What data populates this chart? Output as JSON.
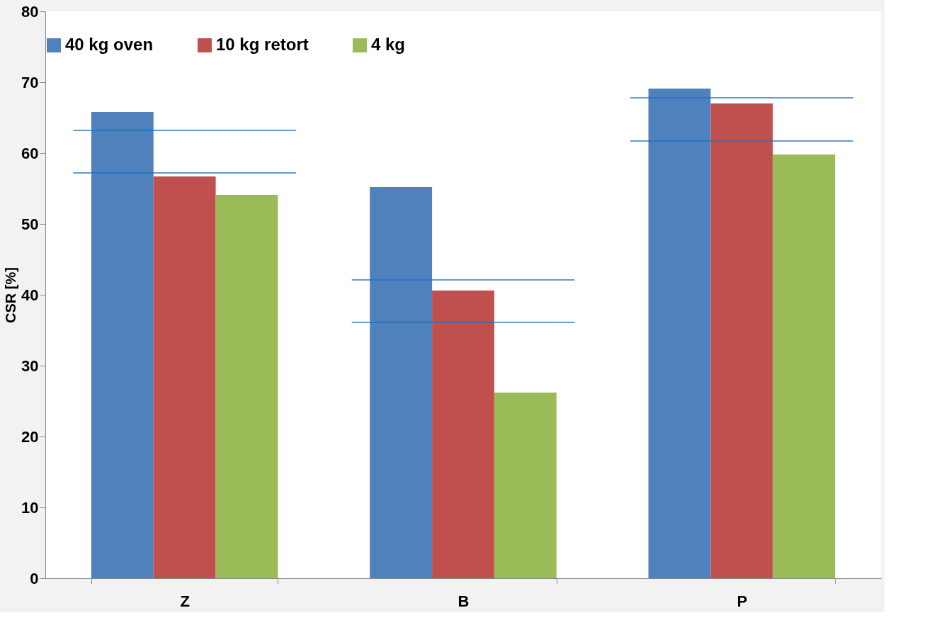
{
  "chart_data": {
    "type": "bar",
    "ylabel": "CSR [%]",
    "categories": [
      "Z",
      "B",
      "P"
    ],
    "series": [
      {
        "name": "40 kg oven",
        "color": "#4f81bd",
        "values": [
          65.8,
          55.2,
          69.1
        ]
      },
      {
        "name": "10 kg retort",
        "color": "#c0504d",
        "values": [
          56.7,
          40.6,
          67.0
        ]
      },
      {
        "name": "4 kg",
        "color": "#9bbb59",
        "values": [
          54.1,
          26.2,
          59.8
        ]
      }
    ],
    "ylim": [
      0,
      80
    ],
    "yticks": [
      0,
      10,
      20,
      30,
      40,
      50,
      60,
      70,
      80
    ],
    "grid": false,
    "legend": "top",
    "ref_lines": [
      {
        "axis": "y",
        "value": 63.2,
        "color": "#1f6fc5"
      },
      {
        "axis": "y",
        "value": 57.2,
        "color": "#1f6fc5"
      },
      {
        "axis": "y",
        "value": 42.1,
        "color": "#1f6fc5"
      },
      {
        "axis": "y",
        "value": 36.1,
        "color": "#1f6fc5"
      },
      {
        "axis": "y",
        "value": 67.8,
        "color": "#1f6fc5"
      },
      {
        "axis": "y",
        "value": 61.7,
        "color": "#1f6fc5"
      }
    ]
  }
}
